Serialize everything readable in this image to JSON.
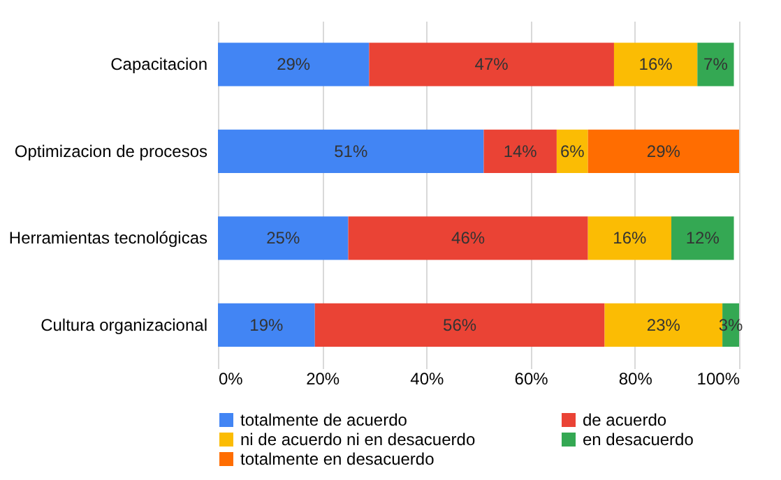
{
  "chart_data": {
    "type": "bar",
    "orientation": "horizontal",
    "stacked": true,
    "categories": [
      "Capacitacion",
      "Optimizacion de procesos",
      "Herramientas tecnológicas",
      "Cultura organizacional"
    ],
    "series": [
      {
        "name": "totalmente de acuerdo",
        "color": "#4285f4",
        "values": [
          29,
          51,
          25,
          18.6
        ],
        "value_labels": [
          "29%",
          "51%",
          "25%",
          "19%"
        ]
      },
      {
        "name": "de acuerdo",
        "color": "#ea4335",
        "values": [
          47,
          14,
          46,
          55.6
        ],
        "value_labels": [
          "47%",
          "14%",
          "46%",
          "56%"
        ]
      },
      {
        "name": "ni de acuerdo ni en desacuerdo",
        "color": "#fbbc04",
        "values": [
          16,
          6,
          16,
          22.6
        ],
        "value_labels": [
          "16%",
          "6%",
          "16%",
          "23%"
        ]
      },
      {
        "name": "en desacuerdo",
        "color": "#34a853",
        "values": [
          7,
          null,
          12,
          3.2
        ],
        "value_labels": [
          "7%",
          null,
          "12%",
          "3%"
        ]
      },
      {
        "name": "totalmente en desacuerdo",
        "color": "#ff6d01",
        "values": [
          null,
          29,
          null,
          null
        ],
        "value_labels": [
          null,
          "29%",
          null,
          null
        ]
      }
    ],
    "xlim": [
      0,
      100
    ],
    "xticks": [
      {
        "value": 0,
        "label": "0%"
      },
      {
        "value": 20,
        "label": "20%"
      },
      {
        "value": 40,
        "label": "40%"
      },
      {
        "value": 60,
        "label": "60%"
      },
      {
        "value": 80,
        "label": "80%"
      },
      {
        "value": 100,
        "label": "100%"
      }
    ],
    "grid": "x",
    "legend": "bottom"
  }
}
